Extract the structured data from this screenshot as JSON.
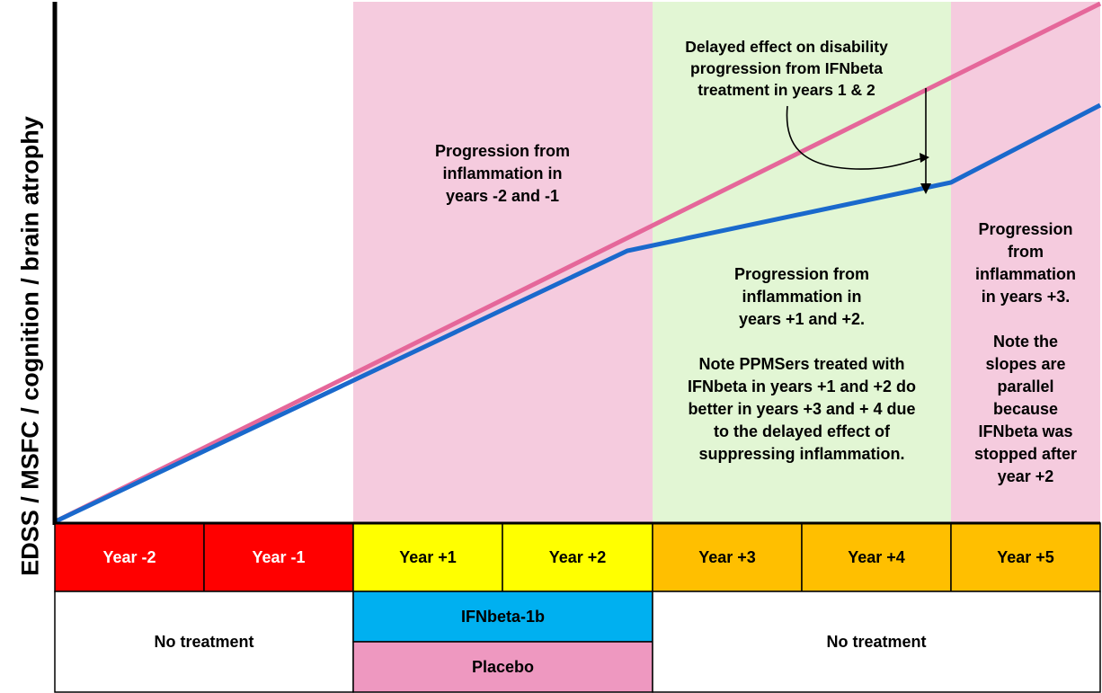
{
  "y_axis_label": "EDSS / MSFC / cognition / brain atrophy",
  "colors": {
    "pink_band": "#f5cbde",
    "green_band": "#e2f6d4",
    "pink_line": "#e5679a",
    "blue_line": "#1a69cc",
    "year_red": "#ff0000",
    "year_yellow": "#ffff00",
    "year_orange": "#ffbf00",
    "ifnbeta": "#00b0f0",
    "placebo": "#ee98c0"
  },
  "years": [
    {
      "label": "Year -2"
    },
    {
      "label": "Year -1"
    },
    {
      "label": "Year +1"
    },
    {
      "label": "Year +2"
    },
    {
      "label": "Year +3"
    },
    {
      "label": "Year +4"
    },
    {
      "label": "Year +5"
    }
  ],
  "treatment_row": {
    "left_label": "No treatment",
    "ifnbeta_label": "IFNbeta-1b",
    "placebo_label": "Placebo",
    "right_label": "No treatment"
  },
  "annotations": {
    "delayed_effect": [
      "Delayed effect on disability",
      "progression from IFNbeta",
      "treatment in  years 1 & 2"
    ],
    "progression_minus": [
      "Progression from",
      "inflammation in",
      "years -2 and -1"
    ],
    "progression_plus": [
      "Progression from",
      "inflammation in",
      "years +1 and +2.",
      "",
      "Note PPMSers treated with",
      "IFNbeta in years +1 and +2 do",
      "better in years +3 and + 4 due",
      "to the delayed effect of",
      "suppressing inflammation."
    ],
    "progression_year3": [
      "Progression",
      "from",
      "inflammation",
      "in years +3.",
      "",
      "Note the",
      "slopes are",
      "parallel",
      "because",
      "IFNbeta was",
      "stopped after",
      "year +2"
    ]
  }
}
